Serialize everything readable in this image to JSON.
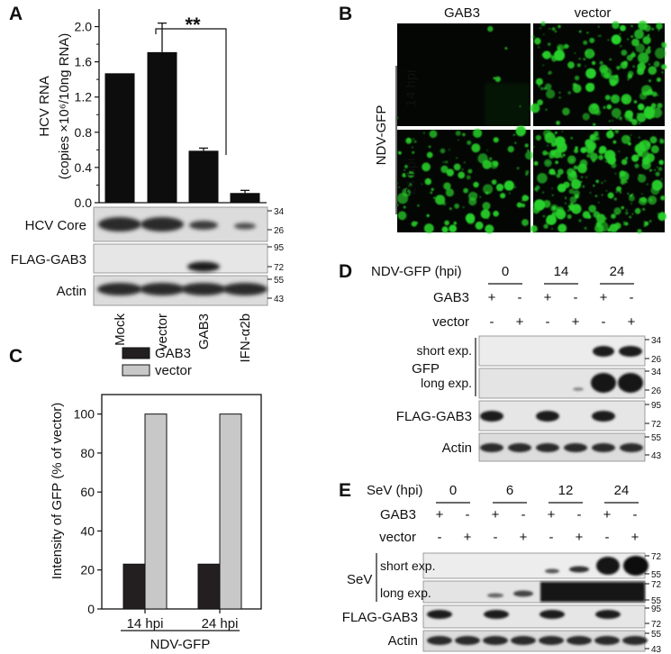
{
  "panel_labels": {
    "a": "A",
    "b": "B",
    "c": "C",
    "d": "D",
    "e": "E"
  },
  "panel_a": {
    "ylabel_line1": "HCV RNA",
    "ylabel_line2": "(copies ×10⁶/10ng RNA)",
    "significance": "**",
    "blot_rows": [
      "HCV Core",
      "FLAG-GAB3",
      "Actin"
    ],
    "markers": [
      "34",
      "26",
      "95",
      "72",
      "55",
      "43"
    ],
    "lane_labels": [
      "Mock",
      "vector",
      "GAB3",
      "IFN-α2b"
    ]
  },
  "panel_b": {
    "col_labels": [
      "GAB3",
      "vector"
    ],
    "row_labels": [
      "14 hpi",
      "24 hpi"
    ],
    "group_label": "NDV-GFP",
    "green": "#28d22a"
  },
  "panel_c": {
    "ylabel": "Intensity of GFP (% of vector)",
    "group_label": "NDV-GFP",
    "legend": [
      "GAB3",
      "vector"
    ]
  },
  "panel_d": {
    "header": "NDV-GFP (hpi)",
    "timepoints": [
      "0",
      "14",
      "24"
    ],
    "gab3_row": {
      "label": "GAB3",
      "signs": [
        "+",
        "-",
        "+",
        "-",
        "+",
        "-"
      ]
    },
    "vector_row": {
      "label": "vector",
      "signs": [
        "-",
        "+",
        "-",
        "+",
        "-",
        "+"
      ]
    },
    "gfp_label": "GFP",
    "exposures": [
      "short exp.",
      "long exp."
    ],
    "blot_rows": [
      "FLAG-GAB3",
      "Actin"
    ],
    "markers": [
      "34",
      "26",
      "34",
      "26",
      "95",
      "72",
      "55",
      "43"
    ]
  },
  "panel_e": {
    "header": "SeV (hpi)",
    "timepoints": [
      "0",
      "6",
      "12",
      "24"
    ],
    "gab3_row": {
      "label": "GAB3",
      "signs": [
        "+",
        "-",
        "+",
        "-",
        "+",
        "-",
        "+",
        "-"
      ]
    },
    "vector_row": {
      "label": "vector",
      "signs": [
        "-",
        "+",
        "-",
        "+",
        "-",
        "+",
        "-",
        "+"
      ]
    },
    "sev_label": "SeV",
    "exposures": [
      "short exp.",
      "long exp."
    ],
    "blot_rows": [
      "FLAG-GAB3",
      "Actin"
    ],
    "markers": [
      "72",
      "55",
      "72",
      "55",
      "95",
      "72",
      "55",
      "43"
    ]
  },
  "chart_data": [
    {
      "type": "bar",
      "categories": [
        "Mock",
        "vector",
        "GAB3",
        "IFN-α2b"
      ],
      "values": [
        1.47,
        1.71,
        0.59,
        0.11
      ],
      "errors": [
        0,
        0.33,
        0.03,
        0.03
      ],
      "ylabel": "HCV RNA (copies ×10⁶/10ng RNA)",
      "ylim": [
        0,
        2.2
      ],
      "yticks": [
        0.0,
        0.4,
        0.8,
        1.2,
        1.6,
        2.0
      ],
      "ytick_labels": [
        "0.0",
        "0.4",
        "0.8",
        "1.2",
        "1.6",
        "2.0"
      ]
    },
    {
      "type": "bar",
      "categories": [
        "14 hpi",
        "24 hpi"
      ],
      "series": [
        {
          "name": "GAB3",
          "values": [
            23,
            23
          ],
          "color": "#231f20"
        },
        {
          "name": "vector",
          "values": [
            100,
            100
          ],
          "color": "#c8c8c8"
        }
      ],
      "ylabel": "Intensity of GFP (% of vector)",
      "ylim": [
        0,
        110
      ],
      "yticks": [
        0,
        20,
        40,
        60,
        80,
        100
      ],
      "ytick_labels": [
        "0",
        "20",
        "40",
        "60",
        "80",
        "100"
      ],
      "legend": "top-left"
    }
  ]
}
